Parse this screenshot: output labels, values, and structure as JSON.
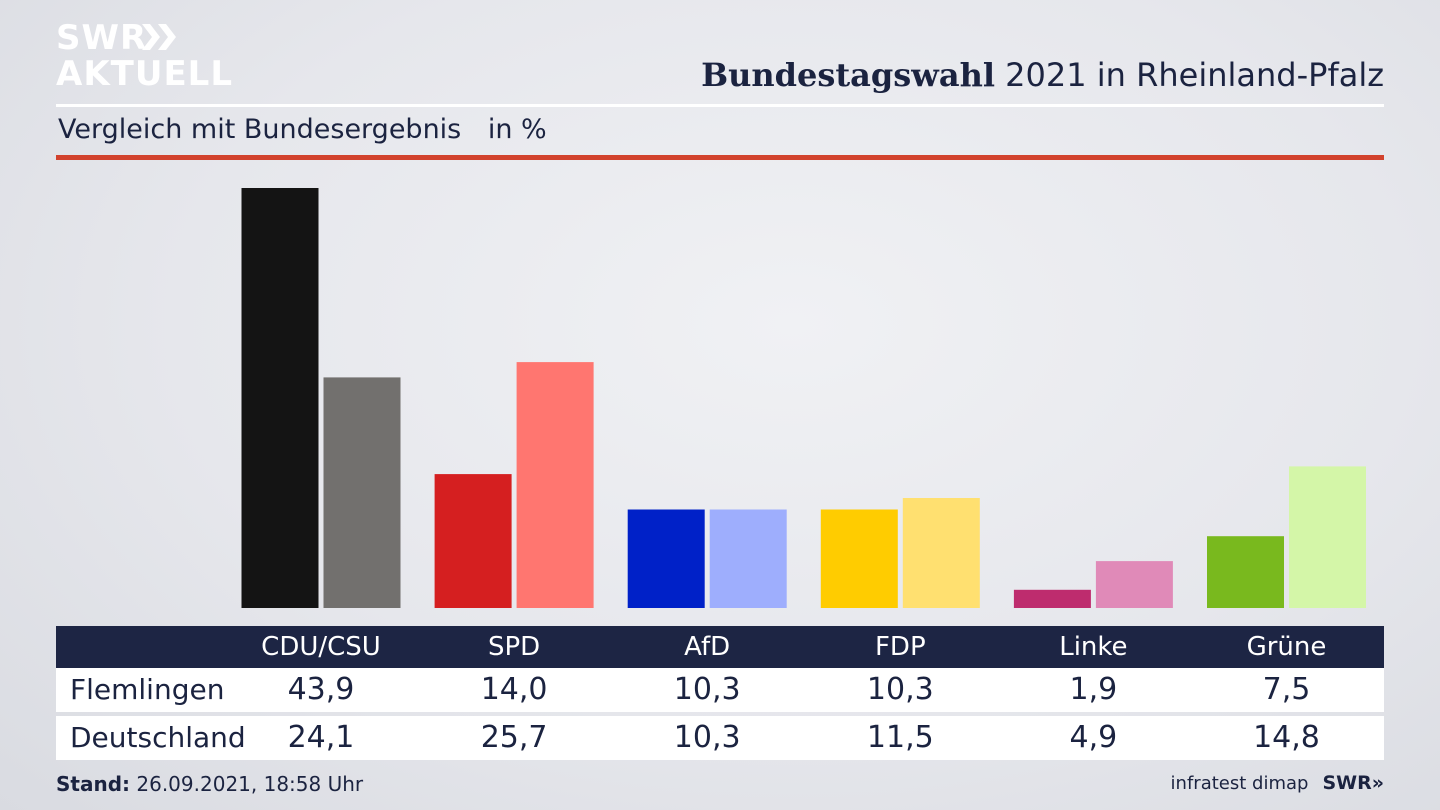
{
  "logo": {
    "line1": "SWR",
    "line2": "AKTUELL"
  },
  "header": {
    "title_bold": "Bundestagswahl",
    "title_rest": "2021 in Rheinland-Pfalz",
    "subtitle": "Vergleich mit Bundesergebnis",
    "unit": "in %"
  },
  "colors": {
    "accent_red": "#d2422d",
    "table_header": "#1d2544"
  },
  "chart_data": {
    "type": "bar",
    "categories": [
      "CDU/CSU",
      "SPD",
      "AfD",
      "FDP",
      "Linke",
      "Grüne"
    ],
    "series": [
      {
        "name": "Flemlingen",
        "values": [
          43.9,
          14.0,
          10.3,
          10.3,
          1.9,
          7.5
        ],
        "display": [
          "43,9",
          "14,0",
          "10,3",
          "10,3",
          "1,9",
          "7,5"
        ],
        "colors": [
          "#141414",
          "#d51f20",
          "#0021c8",
          "#ffcc00",
          "#be2c6e",
          "#79b91e"
        ]
      },
      {
        "name": "Deutschland",
        "values": [
          24.1,
          25.7,
          10.3,
          11.5,
          4.9,
          14.8
        ],
        "display": [
          "24,1",
          "25,7",
          "10,3",
          "11,5",
          "4,9",
          "14,8"
        ],
        "colors": [
          "#72706e",
          "#ff7670",
          "#9eaefd",
          "#ffe070",
          "#e08ab8",
          "#d4f6a8"
        ]
      }
    ],
    "ylim": [
      0,
      43.9
    ],
    "grid": false,
    "legend": "table-below"
  },
  "footer": {
    "stand_label": "Stand:",
    "stand_value": "26.09.2021, 18:58 Uhr",
    "source": "infratest dimap",
    "brand": "SWR"
  }
}
